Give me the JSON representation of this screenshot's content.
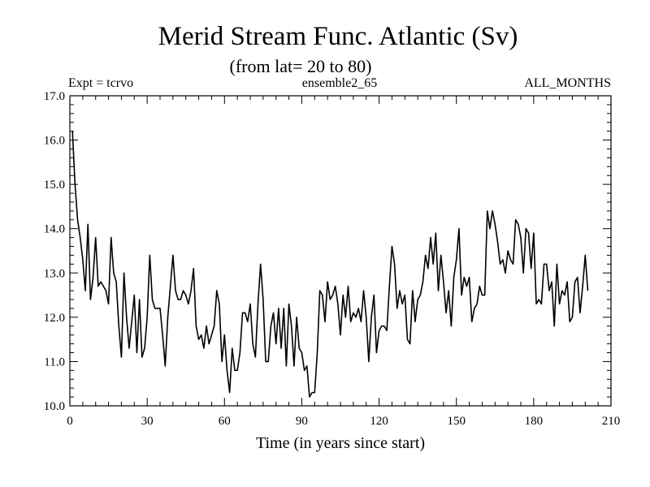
{
  "chart_data": {
    "type": "line",
    "title": "Merid Stream Func. Atlantic (Sv)",
    "subtitle": "(from lat= 20 to 80)",
    "header_left": "Expt = tcrvo",
    "header_center": "ensemble2_65",
    "header_right": "ALL_MONTHS",
    "xlabel": "Time (in years since start)",
    "ylabel": "",
    "xlim": [
      0,
      210
    ],
    "ylim": [
      10.0,
      17.0
    ],
    "x_ticks": [
      0,
      30,
      60,
      90,
      120,
      150,
      180,
      210
    ],
    "x_tick_labels": [
      "0",
      "30",
      "60",
      "90",
      "120",
      "150",
      "180",
      "210"
    ],
    "x_minor_step": 5,
    "y_ticks": [
      10.0,
      11.0,
      12.0,
      13.0,
      14.0,
      15.0,
      16.0,
      17.0
    ],
    "y_tick_labels": [
      "10.0",
      "11.0",
      "12.0",
      "13.0",
      "14.0",
      "15.0",
      "16.0",
      "17.0"
    ],
    "y_minor_step": 0.2,
    "grid": false,
    "series": [
      {
        "name": "Merid Stream Func. Atlantic",
        "x_start": 1,
        "x_step": 1,
        "values": [
          16.2,
          15.0,
          14.2,
          13.8,
          13.3,
          12.6,
          14.1,
          12.4,
          12.9,
          13.8,
          12.7,
          12.8,
          12.7,
          12.6,
          12.3,
          13.8,
          13.0,
          12.8,
          11.8,
          11.1,
          13.0,
          12.0,
          11.3,
          11.9,
          12.5,
          11.2,
          12.4,
          11.1,
          11.3,
          12.0,
          13.4,
          12.4,
          12.2,
          12.2,
          12.2,
          11.6,
          10.9,
          12.0,
          12.7,
          13.4,
          12.6,
          12.4,
          12.4,
          12.6,
          12.5,
          12.3,
          12.6,
          13.1,
          11.8,
          11.5,
          11.6,
          11.3,
          11.8,
          11.4,
          11.6,
          11.8,
          12.6,
          12.3,
          11.0,
          11.6,
          10.8,
          10.3,
          11.3,
          10.8,
          10.8,
          11.2,
          12.1,
          12.1,
          11.9,
          12.3,
          11.4,
          11.1,
          12.3,
          13.2,
          12.4,
          11.0,
          11.0,
          11.8,
          12.1,
          11.4,
          12.2,
          11.3,
          12.2,
          10.9,
          12.3,
          11.8,
          10.9,
          12.0,
          11.3,
          11.2,
          10.8,
          10.9,
          10.2,
          10.3,
          10.3,
          11.2,
          12.6,
          12.5,
          11.9,
          12.8,
          12.4,
          12.5,
          12.7,
          12.3,
          11.6,
          12.5,
          12.0,
          12.7,
          11.9,
          12.1,
          12.0,
          12.2,
          11.9,
          12.6,
          12.0,
          11.0,
          12.0,
          12.5,
          11.2,
          11.7,
          11.8,
          11.8,
          11.7,
          12.7,
          13.6,
          13.2,
          12.2,
          12.6,
          12.3,
          12.5,
          11.5,
          11.4,
          12.6,
          11.9,
          12.4,
          12.5,
          12.8,
          13.4,
          13.1,
          13.8,
          13.2,
          13.9,
          12.6,
          13.4,
          12.8,
          12.1,
          12.6,
          11.8,
          12.9,
          13.3,
          14.0,
          12.5,
          12.9,
          12.7,
          12.9,
          11.9,
          12.2,
          12.3,
          12.7,
          12.5,
          12.5,
          14.4,
          14.0,
          14.4,
          14.1,
          13.7,
          13.2,
          13.3,
          13.0,
          13.5,
          13.3,
          13.2,
          14.2,
          14.1,
          13.8,
          13.0,
          14.0,
          13.9,
          13.1,
          13.9,
          12.3,
          12.4,
          12.3,
          13.2,
          13.2,
          12.6,
          12.8,
          11.8,
          13.2,
          12.3,
          12.6,
          12.5,
          12.8,
          11.9,
          12.0,
          12.8,
          12.9,
          12.1,
          12.7,
          13.4,
          12.6
        ]
      }
    ]
  }
}
